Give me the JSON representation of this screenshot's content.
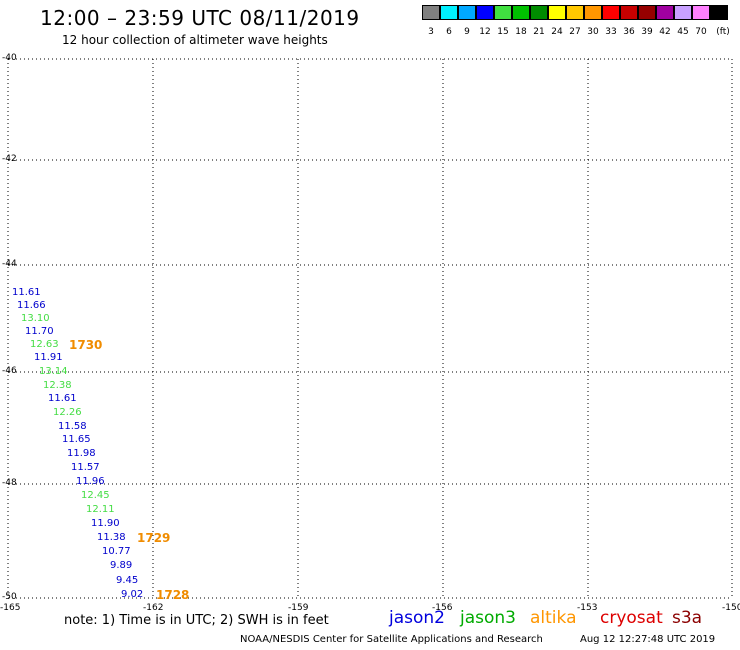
{
  "header": {
    "title": "12:00 – 23:59 UTC 08/11/2019",
    "subtitle": "12 hour collection of altimeter wave heights"
  },
  "colorbar": {
    "colors": [
      "#808080",
      "#00f0ff",
      "#00a8ff",
      "#0000ff",
      "#40e040",
      "#00c000",
      "#008c00",
      "#ffff00",
      "#ffc800",
      "#ff9600",
      "#ff0000",
      "#c80000",
      "#960000",
      "#a000a0",
      "#c8a0ff",
      "#ff80ff",
      "#000000"
    ],
    "labels": [
      "3",
      "6",
      "9",
      "12",
      "15",
      "18",
      "21",
      "24",
      "27",
      "30",
      "33",
      "36",
      "39",
      "42",
      "45",
      "70",
      "(ft)"
    ]
  },
  "axes": {
    "y_ticks": [
      "-40",
      "-42",
      "-44",
      "-46",
      "-48",
      "-50"
    ],
    "x_ticks": [
      "-165",
      "-162",
      "-159",
      "-156",
      "-153",
      "-150"
    ]
  },
  "observations": [
    {
      "value": "11.61",
      "sat": "jason2"
    },
    {
      "value": "11.66",
      "sat": "jason2"
    },
    {
      "value": "13.10",
      "sat": "jason3"
    },
    {
      "value": "11.70",
      "sat": "jason2"
    },
    {
      "value": "12.63",
      "sat": "jason3"
    },
    {
      "value": "11.91",
      "sat": "jason2"
    },
    {
      "value": "13.14",
      "sat": "jason3"
    },
    {
      "value": "12.38",
      "sat": "jason3"
    },
    {
      "value": "11.61",
      "sat": "jason2"
    },
    {
      "value": "12.26",
      "sat": "jason3"
    },
    {
      "value": "11.58",
      "sat": "jason2"
    },
    {
      "value": "11.65",
      "sat": "jason2"
    },
    {
      "value": "11.98",
      "sat": "jason2"
    },
    {
      "value": "11.57",
      "sat": "jason2"
    },
    {
      "value": "11.96",
      "sat": "jason2"
    },
    {
      "value": "12.45",
      "sat": "jason3"
    },
    {
      "value": "12.11",
      "sat": "jason3"
    },
    {
      "value": "11.90",
      "sat": "jason2"
    },
    {
      "value": "11.38",
      "sat": "jason2"
    },
    {
      "value": "10.77",
      "sat": "jason2"
    },
    {
      "value": "9.89",
      "sat": "jason2"
    },
    {
      "value": "9.45",
      "sat": "jason2"
    },
    {
      "value": "9.02",
      "sat": "jason2"
    }
  ],
  "pass_times": [
    "1730",
    "1729",
    "1728"
  ],
  "legend": {
    "note": "note: 1) Time is in UTC; 2) SWH is in feet",
    "satellites": [
      {
        "name": "jason2",
        "color": "#0000dd"
      },
      {
        "name": "jason3",
        "color": "#00aa00"
      },
      {
        "name": "altika",
        "color": "#ff9600"
      },
      {
        "name": "cryosat",
        "color": "#dd0000"
      },
      {
        "name": "s3a",
        "color": "#8b0000"
      }
    ]
  },
  "footer": {
    "credit": "NOAA/NESDIS Center for Satellite Applications and Research",
    "timestamp": "Aug 12 12:27:48 UTC 2019"
  },
  "colors": {
    "jason2": "#0000cc",
    "jason3": "#44dd44",
    "altika": "#f08c00",
    "grid": "#000000"
  }
}
